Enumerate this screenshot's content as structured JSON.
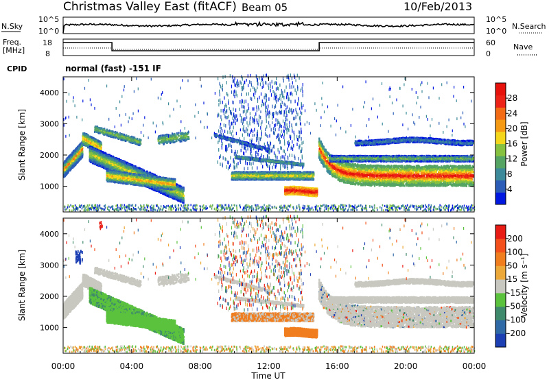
{
  "header": {
    "site": "Christmas Valley East (fitACF)",
    "beam": "Beam 05",
    "date": "10/Feb/2013"
  },
  "nsky_panel": {
    "left_label": "N.Sky",
    "left_ticks": [
      "10^5",
      "10^0"
    ],
    "right_label": "N.Search",
    "right_ticks": [
      "10^5",
      "10^0"
    ]
  },
  "freq_panel": {
    "left_label_1": "Freq.",
    "left_label_2": "[MHz]",
    "left_ticks": [
      "18",
      "8"
    ],
    "right_label": "Nave",
    "right_ticks": [
      "60",
      "0"
    ]
  },
  "cpid": {
    "label": "CPID",
    "value": "normal (fast) -151 IF"
  },
  "chart_data": [
    {
      "type": "heatmap",
      "name": "power",
      "ylabel": "Slant Range [km]",
      "xlabel": "Time UT",
      "x_ticks": [
        "00:00",
        "04:00",
        "08:00",
        "12:00",
        "16:00",
        "20:00",
        "00:00"
      ],
      "xlim_hours": [
        0,
        24
      ],
      "ylim": [
        180,
        4500
      ],
      "y_ticks": [
        1000,
        2000,
        3000,
        4000
      ],
      "colorbar": {
        "label": "Power [dB]",
        "ticks": [
          "4",
          "8",
          "12",
          "16",
          "20",
          "24",
          "28"
        ],
        "colors": [
          "#0018e0",
          "#2a5cb8",
          "#3c8a9a",
          "#55a463",
          "#86c140",
          "#f4d61a",
          "#f59a14",
          "#f36b15",
          "#ec2316",
          "#e8120c"
        ]
      }
    },
    {
      "type": "heatmap",
      "name": "velocity",
      "ylabel": "Slant Range [km]",
      "xlabel": "Time UT",
      "x_ticks": [
        "00:00",
        "04:00",
        "08:00",
        "12:00",
        "16:00",
        "20:00",
        "00:00"
      ],
      "xlim_hours": [
        0,
        24
      ],
      "ylim": [
        180,
        4500
      ],
      "y_ticks": [
        1000,
        2000,
        3000,
        4000
      ],
      "colorbar": {
        "label": "Velocity [m s⁻¹]",
        "ticks": [
          "200",
          "100",
          "50",
          "15",
          "-15",
          "-50",
          "-100",
          "-200"
        ],
        "colors": [
          "#1c3fb4",
          "#2f6aa6",
          "#3f8a6c",
          "#5bc23e",
          "#c8c8c0",
          "#eda83a",
          "#f07d1e",
          "#f4501c",
          "#e81c14"
        ]
      }
    }
  ],
  "series_colors": {
    "green_velocity": "#4ec33a",
    "gray_velocity": "#c6c6be",
    "orange_velocity": "#f09a28",
    "red_power": "#f02a14"
  }
}
